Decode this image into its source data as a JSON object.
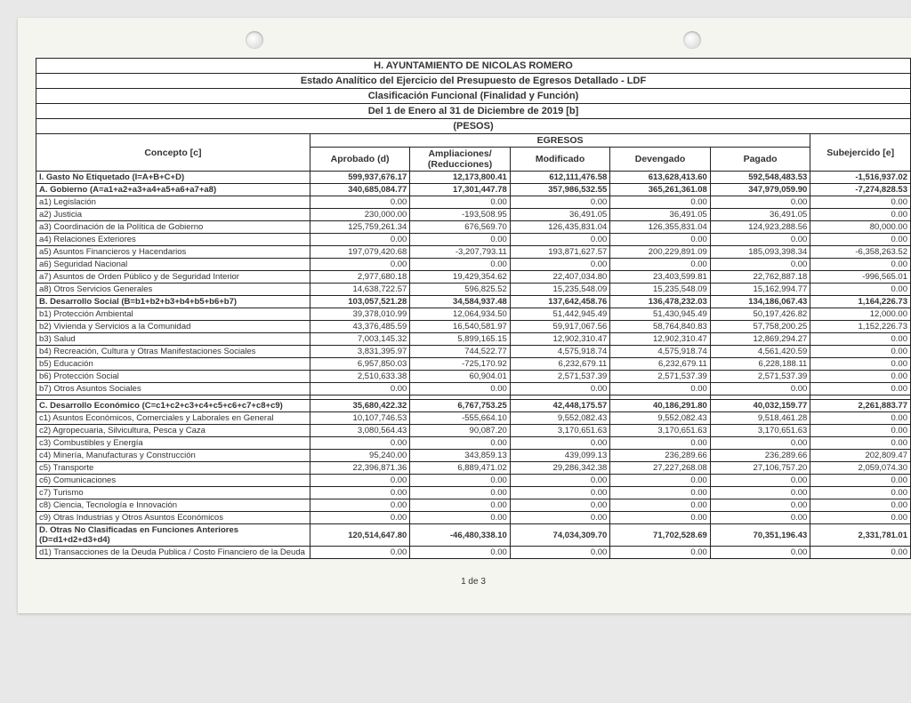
{
  "titles": [
    "H. AYUNTAMIENTO DE NICOLAS ROMERO",
    "Estado Analítico del Ejercicio del Presupuesto de Egresos Detallado - LDF",
    "Clasificación Funcional (Finalidad y Función)",
    "Del 1 de Enero al 31 de Diciembre de 2019 [b]",
    "(PESOS)"
  ],
  "headers": {
    "concepto": "Concepto [c]",
    "egresos": "EGRESOS",
    "aprobado": "Aprobado (d)",
    "ampliaciones": "Ampliaciones/ (Reducciones)",
    "modificado": "Modificado",
    "devengado": "Devengado",
    "pagado": "Pagado",
    "subejercido": "Subejercido [e]"
  },
  "rows": [
    {
      "label": "I. Gasto No Etiquetado (I=A+B+C+D)",
      "bold": true,
      "v": [
        "599,937,676.17",
        "12,173,800.41",
        "612,111,476.58",
        "613,628,413.60",
        "592,548,483.53",
        "-1,516,937.02"
      ]
    },
    {
      "label": "A. Gobierno (A=a1+a2+a3+a4+a5+a6+a7+a8)",
      "bold": true,
      "v": [
        "340,685,084.77",
        "17,301,447.78",
        "357,986,532.55",
        "365,261,361.08",
        "347,979,059.90",
        "-7,274,828.53"
      ]
    },
    {
      "label": "a1) Legislación",
      "bold": false,
      "v": [
        "0.00",
        "0.00",
        "0.00",
        "0.00",
        "0.00",
        "0.00"
      ]
    },
    {
      "label": "a2) Justicia",
      "bold": false,
      "v": [
        "230,000.00",
        "-193,508.95",
        "36,491.05",
        "36,491.05",
        "36,491.05",
        "0.00"
      ]
    },
    {
      "label": "a3) Coordinación de la Política de Gobierno",
      "bold": false,
      "v": [
        "125,759,261.34",
        "676,569.70",
        "126,435,831.04",
        "126,355,831.04",
        "124,923,288.56",
        "80,000.00"
      ]
    },
    {
      "label": "a4) Relaciones Exteriores",
      "bold": false,
      "v": [
        "0.00",
        "0.00",
        "0.00",
        "0.00",
        "0.00",
        "0.00"
      ]
    },
    {
      "label": "a5) Asuntos Financieros y Hacendarios",
      "bold": false,
      "v": [
        "197,079,420.68",
        "-3,207,793.11",
        "193,871,627.57",
        "200,229,891.09",
        "185,093,398.34",
        "-6,358,263.52"
      ]
    },
    {
      "label": "a6) Seguridad Nacional",
      "bold": false,
      "v": [
        "0.00",
        "0.00",
        "0.00",
        "0.00",
        "0.00",
        "0.00"
      ]
    },
    {
      "label": "a7) Asuntos de Orden Público y de Seguridad Interior",
      "bold": false,
      "v": [
        "2,977,680.18",
        "19,429,354.62",
        "22,407,034.80",
        "23,403,599.81",
        "22,762,887.18",
        "-996,565.01"
      ]
    },
    {
      "label": "a8) Otros Servicios Generales",
      "bold": false,
      "v": [
        "14,638,722.57",
        "596,825.52",
        "15,235,548.09",
        "15,235,548.09",
        "15,162,994.77",
        "0.00"
      ]
    },
    {
      "label": "B. Desarrollo Social (B=b1+b2+b3+b4+b5+b6+b7)",
      "bold": true,
      "v": [
        "103,057,521.28",
        "34,584,937.48",
        "137,642,458.76",
        "136,478,232.03",
        "134,186,067.43",
        "1,164,226.73"
      ]
    },
    {
      "label": "b1) Protección Ambiental",
      "bold": false,
      "v": [
        "39,378,010.99",
        "12,064,934.50",
        "51,442,945.49",
        "51,430,945.49",
        "50,197,426.82",
        "12,000.00"
      ]
    },
    {
      "label": "b2) Vivienda y Servicios a la Comunidad",
      "bold": false,
      "v": [
        "43,376,485.59",
        "16,540,581.97",
        "59,917,067.56",
        "58,764,840.83",
        "57,758,200.25",
        "1,152,226.73"
      ]
    },
    {
      "label": "b3) Salud",
      "bold": false,
      "v": [
        "7,003,145.32",
        "5,899,165.15",
        "12,902,310.47",
        "12,902,310.47",
        "12,869,294.27",
        "0.00"
      ]
    },
    {
      "label": "b4) Recreación, Cultura y Otras Manifestaciones Sociales",
      "bold": false,
      "v": [
        "3,831,395.97",
        "744,522.77",
        "4,575,918.74",
        "4,575,918.74",
        "4,561,420.59",
        "0.00"
      ]
    },
    {
      "label": "b5) Educación",
      "bold": false,
      "v": [
        "6,957,850.03",
        "-725,170.92",
        "6,232,679.11",
        "6,232,679.11",
        "6,228,188.11",
        "0.00"
      ]
    },
    {
      "label": "b6) Protección Social",
      "bold": false,
      "v": [
        "2,510,633.38",
        "60,904.01",
        "2,571,537.39",
        "2,571,537.39",
        "2,571,537.39",
        "0.00"
      ]
    },
    {
      "label": "b7) Otros Asuntos Sociales",
      "bold": false,
      "v": [
        "0.00",
        "0.00",
        "0.00",
        "0.00",
        "0.00",
        "0.00"
      ]
    },
    {
      "label": "",
      "bold": false,
      "spacer": true,
      "v": [
        "",
        "",
        "",
        "",
        "",
        ""
      ]
    },
    {
      "label": "C. Desarrollo Económico (C=c1+c2+c3+c4+c5+c6+c7+c8+c9)",
      "bold": true,
      "v": [
        "35,680,422.32",
        "6,767,753.25",
        "42,448,175.57",
        "40,186,291.80",
        "40,032,159.77",
        "2,261,883.77"
      ]
    },
    {
      "label": "c1) Asuntos Económicos, Comerciales y Laborales en General",
      "bold": false,
      "v": [
        "10,107,746.53",
        "-555,664.10",
        "9,552,082.43",
        "9,552,082.43",
        "9,518,461.28",
        "0.00"
      ]
    },
    {
      "label": "c2) Agropecuaria, Silvicultura, Pesca y Caza",
      "bold": false,
      "v": [
        "3,080,564.43",
        "90,087.20",
        "3,170,651.63",
        "3,170,651.63",
        "3,170,651.63",
        "0.00"
      ]
    },
    {
      "label": "c3) Combustibles y Energía",
      "bold": false,
      "v": [
        "0.00",
        "0.00",
        "0.00",
        "0.00",
        "0.00",
        "0.00"
      ]
    },
    {
      "label": "c4) Minería, Manufacturas y Construcción",
      "bold": false,
      "v": [
        "95,240.00",
        "343,859.13",
        "439,099.13",
        "236,289.66",
        "236,289.66",
        "202,809.47"
      ]
    },
    {
      "label": "c5) Transporte",
      "bold": false,
      "v": [
        "22,396,871.36",
        "6,889,471.02",
        "29,286,342.38",
        "27,227,268.08",
        "27,106,757.20",
        "2,059,074.30"
      ]
    },
    {
      "label": "c6) Comunicaciones",
      "bold": false,
      "v": [
        "0.00",
        "0.00",
        "0.00",
        "0.00",
        "0.00",
        "0.00"
      ]
    },
    {
      "label": "c7) Turismo",
      "bold": false,
      "v": [
        "0.00",
        "0.00",
        "0.00",
        "0.00",
        "0.00",
        "0.00"
      ]
    },
    {
      "label": "c8) Ciencia, Tecnología e Innovación",
      "bold": false,
      "v": [
        "0.00",
        "0.00",
        "0.00",
        "0.00",
        "0.00",
        "0.00"
      ]
    },
    {
      "label": "c9) Otras Industrias y Otros Asuntos Económicos",
      "bold": false,
      "v": [
        "0.00",
        "0.00",
        "0.00",
        "0.00",
        "0.00",
        "0.00"
      ]
    },
    {
      "label": "D. Otras No Clasificadas en Funciones Anteriores (D=d1+d2+d3+d4)",
      "bold": true,
      "wrap": true,
      "v": [
        "120,514,647.80",
        "-46,480,338.10",
        "74,034,309.70",
        "71,702,528.69",
        "70,351,196.43",
        "2,331,781.01"
      ]
    },
    {
      "label": "d1) Transacciones de la Deuda Publica / Costo Financiero de la Deuda",
      "bold": false,
      "wrap": true,
      "v": [
        "0.00",
        "0.00",
        "0.00",
        "0.00",
        "0.00",
        "0.00"
      ]
    }
  ],
  "pager": "1 de 3",
  "style": {
    "background": "#f5f5f0",
    "border_color": "#222222",
    "title_fontsize": 11,
    "header_fontsize": 10.5,
    "cell_fontsize": 9.5
  }
}
